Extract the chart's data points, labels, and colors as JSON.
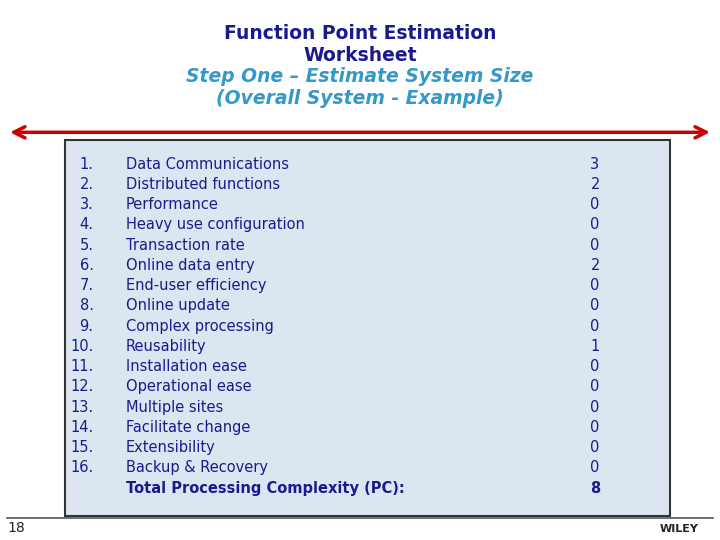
{
  "title_line1": "Function Point Estimation",
  "title_line2": "Worksheet",
  "title_line3": "Step One – Estimate System Size",
  "title_line4": "(Overall System - Example)",
  "title_color_dark": "#1a1a8c",
  "title_color_light": "#3399cc",
  "items": [
    {
      "num": "1.",
      "label": "Data Communications",
      "value": "3"
    },
    {
      "num": "2.",
      "label": "Distributed functions",
      "value": "2"
    },
    {
      "num": "3.",
      "label": "Performance",
      "value": "0"
    },
    {
      "num": "4.",
      "label": "Heavy use configuration",
      "value": "0"
    },
    {
      "num": "5.",
      "label": "Transaction rate",
      "value": "0"
    },
    {
      "num": "6.",
      "label": "Online data entry",
      "value": "2"
    },
    {
      "num": "7.",
      "label": "End-user efficiency",
      "value": "0"
    },
    {
      "num": "8.",
      "label": "Online update",
      "value": "0"
    },
    {
      "num": "9.",
      "label": "Complex processing",
      "value": "0"
    },
    {
      "num": "10.",
      "label": "Reusability",
      "value": "1"
    },
    {
      "num": "11.",
      "label": "Installation ease",
      "value": "0"
    },
    {
      "num": "12.",
      "label": "Operational ease",
      "value": "0"
    },
    {
      "num": "13.",
      "label": "Multiple sites",
      "value": "0"
    },
    {
      "num": "14.",
      "label": "Facilitate change",
      "value": "0"
    },
    {
      "num": "15.",
      "label": "Extensibility",
      "value": "0"
    },
    {
      "num": "16.",
      "label": "Backup & Recovery",
      "value": "0"
    }
  ],
  "total_label": "Total Processing Complexity (PC):",
  "total_value": "8",
  "box_bg": "#dce6f1",
  "box_edge": "#333333",
  "text_color": "#1a1a8c",
  "arrow_color": "#cc0000",
  "page_num": "18",
  "item_fontsize": 10.5,
  "total_fontsize": 10.5,
  "bg_color": "#ffffff"
}
